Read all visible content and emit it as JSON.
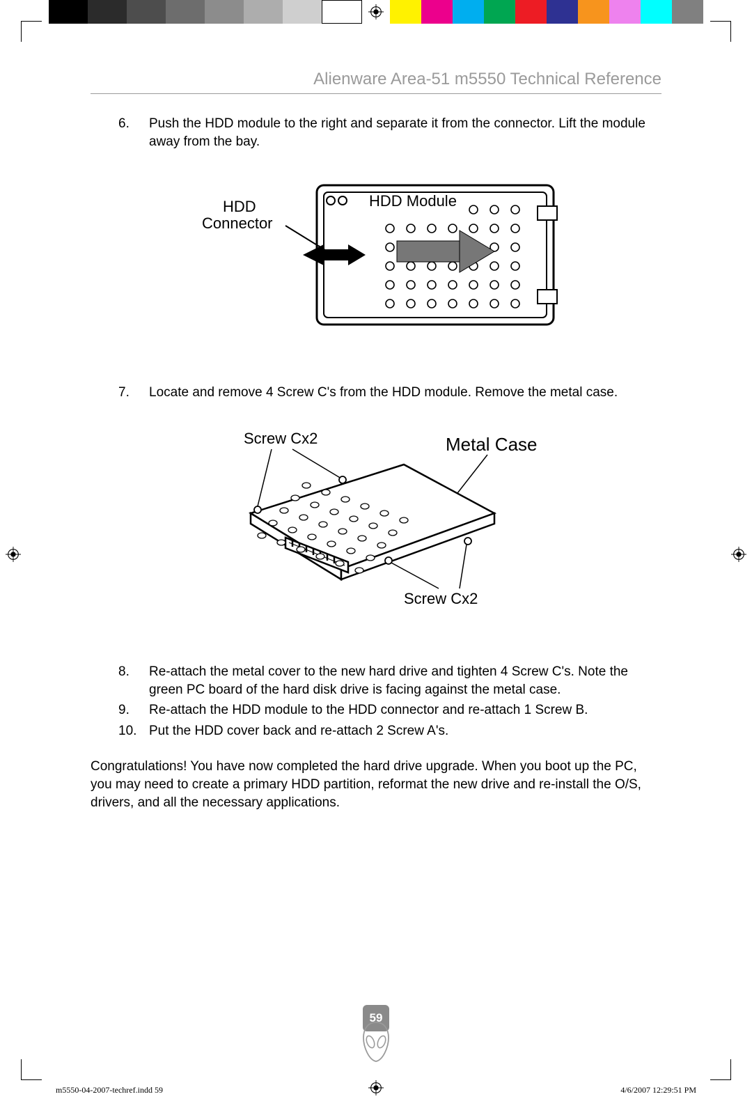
{
  "colorbar": {
    "left": [
      "#000000",
      "#2b2b2b",
      "#4d4d4d",
      "#6d6d6d",
      "#8c8c8c",
      "#adadad",
      "#cfcfcf",
      "#ffffff"
    ],
    "right": [
      "#fff200",
      "#ec008c",
      "#00aeef",
      "#00a651",
      "#ed1c24",
      "#2e3192",
      "#f7941d",
      "#ee82ee",
      "#00ffff",
      "#808080"
    ]
  },
  "header": {
    "title": "Alienware Area-51 m5550 Technical Reference"
  },
  "steps": [
    {
      "n": "6.",
      "text": "Push the HDD module to the right and separate it from the connector. Lift the module away from the bay."
    },
    {
      "n": "7.",
      "text": "Locate and remove 4 Screw C's from the HDD module. Remove the metal case."
    },
    {
      "n": "8.",
      "text": "Re-attach the metal cover to the new hard drive and tighten 4 Screw C's. Note the green PC board of the hard disk drive is facing against the metal case."
    },
    {
      "n": "9.",
      "text": "Re-attach the HDD module to the HDD connector and re-attach 1 Screw B."
    },
    {
      "n": "10.",
      "text": "Put the HDD cover back and re-attach 2 Screw A's."
    }
  ],
  "fig1": {
    "label_connector": "HDD\nConnector",
    "label_module": "HDD Module"
  },
  "fig2": {
    "label_top": "Screw  Cx2",
    "label_right": "Metal Case",
    "label_bottom": "Screw Cx2"
  },
  "closing": "Congratulations! You have now completed the hard drive upgrade. When you boot up the PC, you may need to create a primary HDD partition, reformat the new drive and re-install the O/S, drivers, and all the necessary applications.",
  "page_number": "59",
  "footer": {
    "left": "m5550-04-2007-techref.indd   59",
    "right": "4/6/2007   12:29:51 PM"
  }
}
